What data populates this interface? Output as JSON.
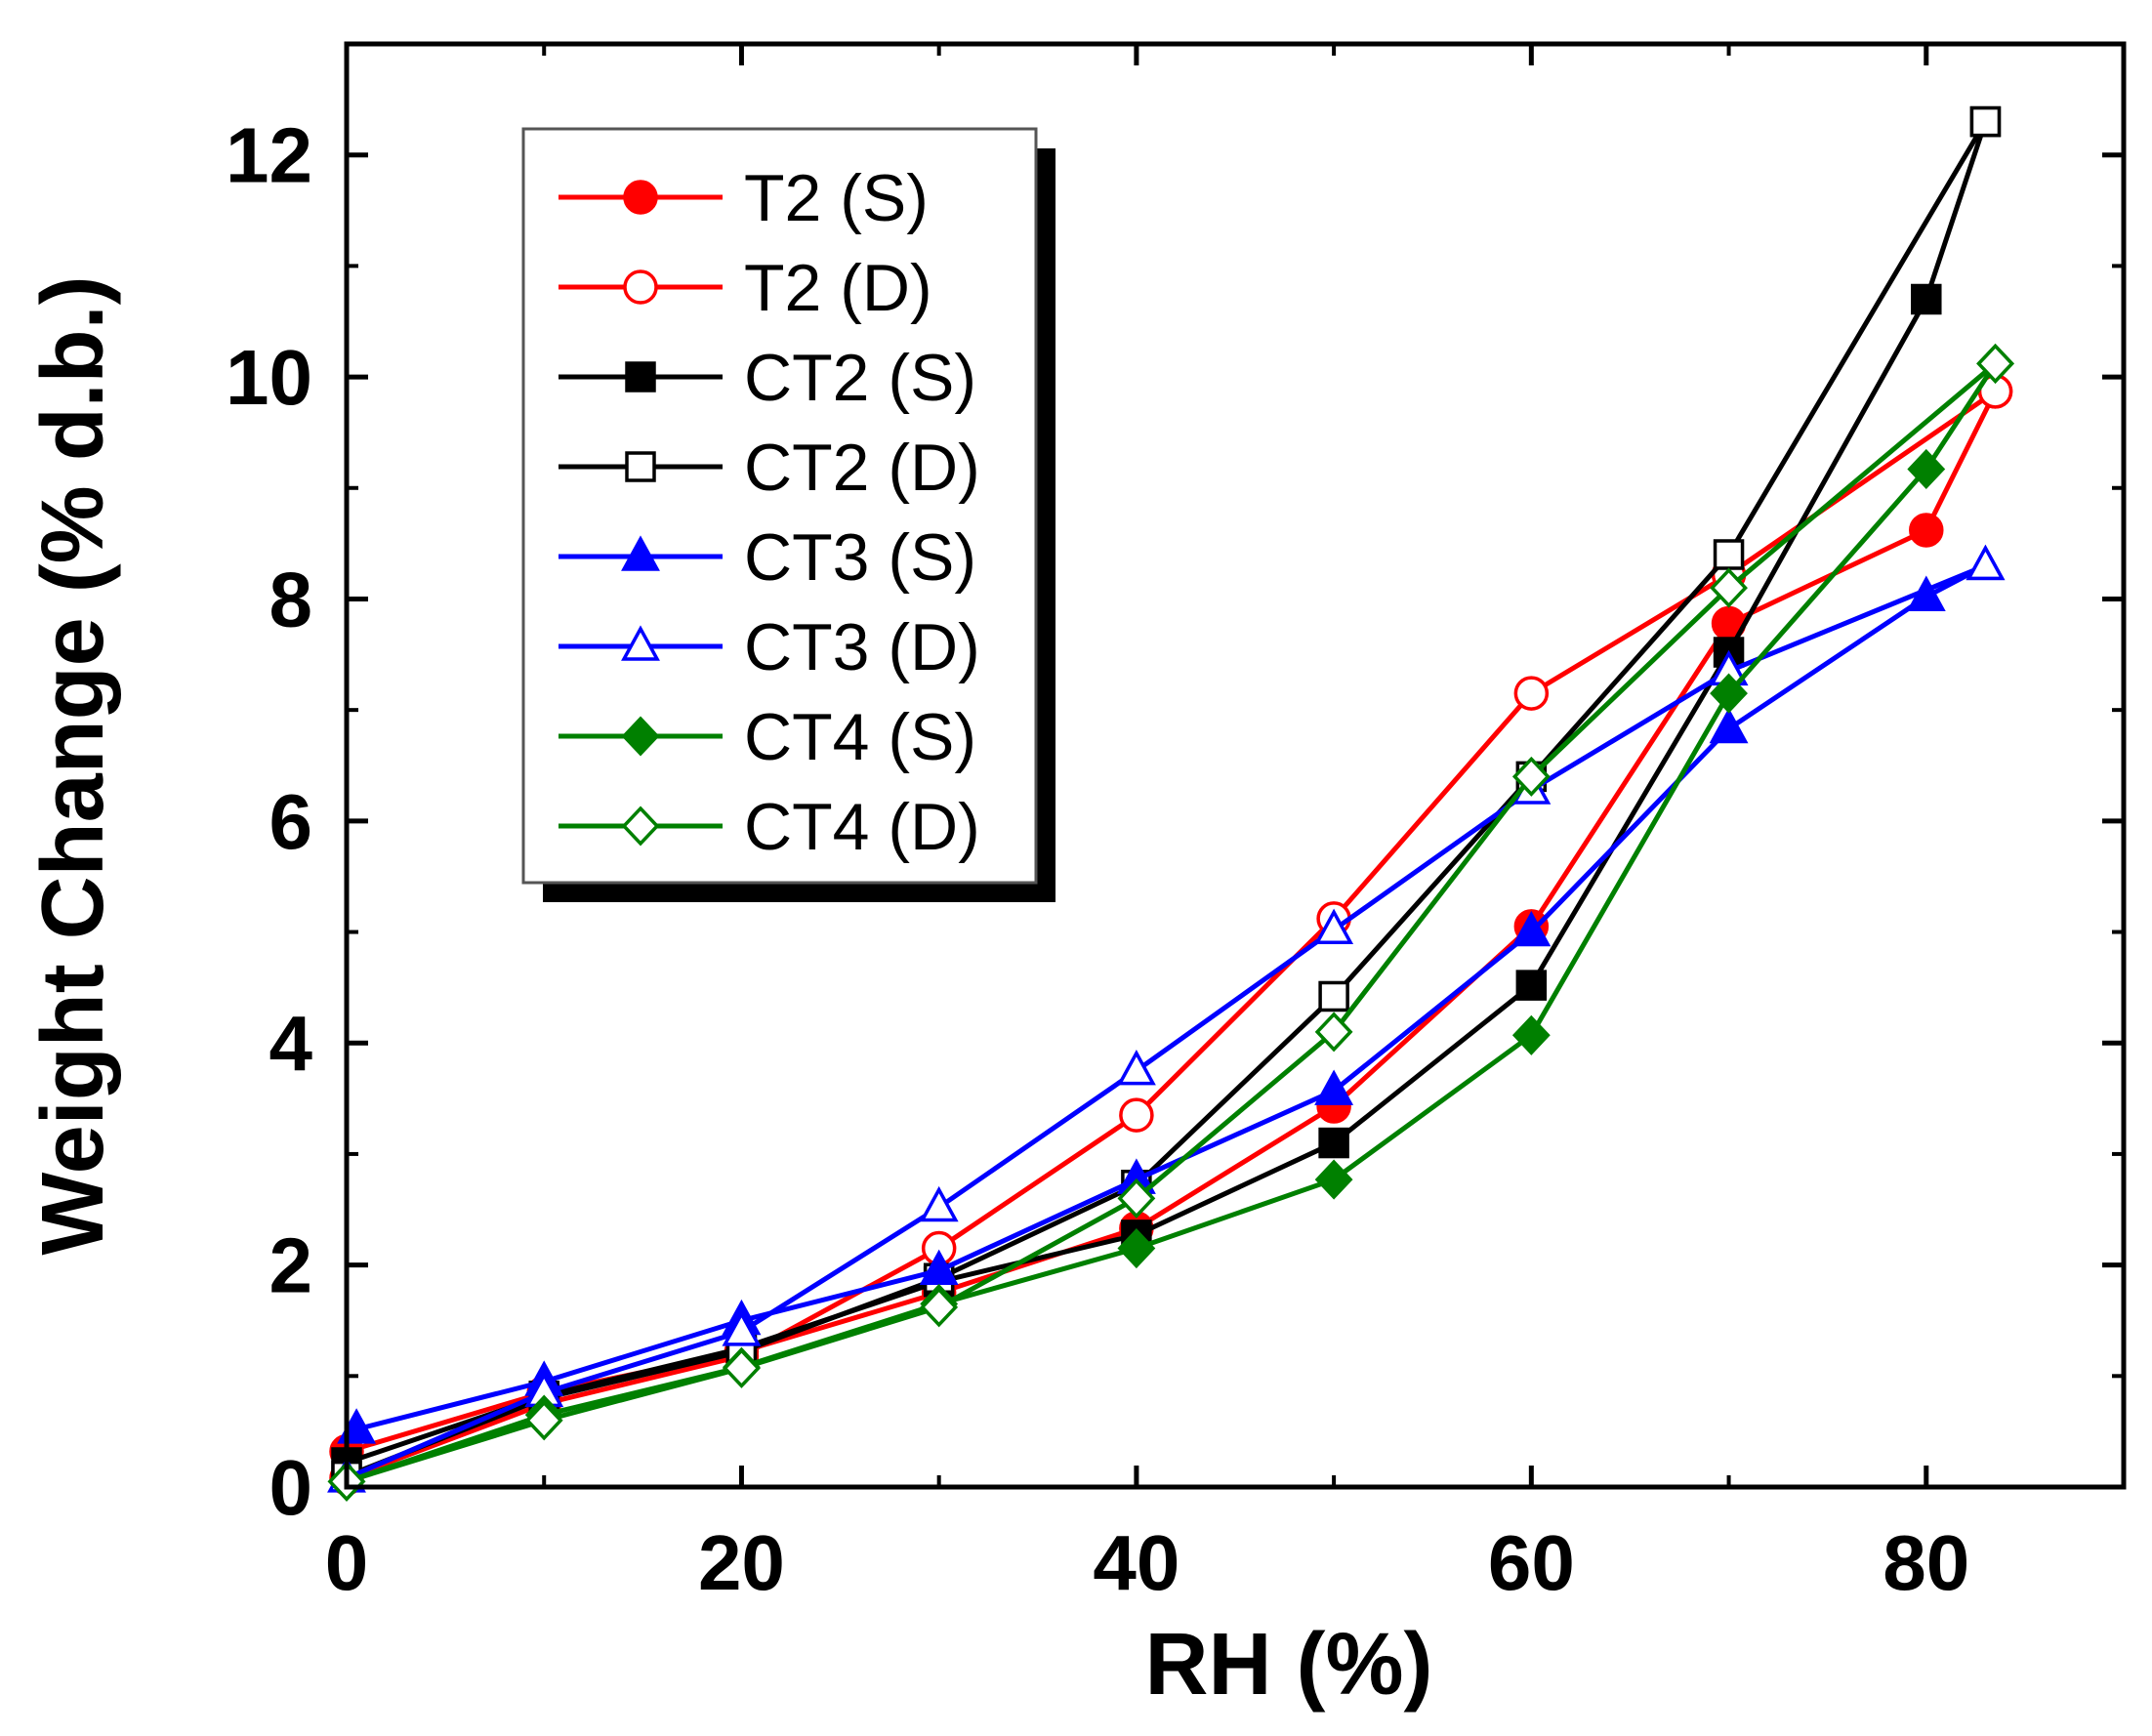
{
  "chart_data": {
    "type": "line",
    "title": "",
    "xlabel": "RH (%)",
    "ylabel": "Weight Change (% d.b.)",
    "xlim": [
      0,
      90
    ],
    "ylim": [
      0,
      13
    ],
    "xticks": [
      0,
      20,
      40,
      60,
      80
    ],
    "yticks": [
      0,
      2,
      4,
      6,
      8,
      10,
      12
    ],
    "xtick_labels": [
      "0",
      "20",
      "40",
      "60",
      "80"
    ],
    "ytick_labels": [
      "0",
      "2",
      "4",
      "6",
      "8",
      "10",
      "12"
    ],
    "grid": false,
    "legend_position": "top-left",
    "series": [
      {
        "name": "T2 (S)",
        "color": "#ff0000",
        "marker": "circle",
        "filled": true,
        "x": [
          0,
          10,
          20,
          30,
          40,
          50,
          60,
          70,
          80,
          83.5
        ],
        "y": [
          0.32,
          0.85,
          1.22,
          1.75,
          2.33,
          3.43,
          5.05,
          7.78,
          8.62,
          9.87
        ]
      },
      {
        "name": "T2 (D)",
        "color": "#ff0000",
        "marker": "circle",
        "filled": false,
        "x": [
          0,
          10,
          20,
          30,
          40,
          50,
          60,
          70,
          83.5
        ],
        "y": [
          0.08,
          0.75,
          1.18,
          2.15,
          3.35,
          5.12,
          7.15,
          8.22,
          9.87
        ]
      },
      {
        "name": "CT2 (S)",
        "color": "#000000",
        "marker": "square",
        "filled": true,
        "x": [
          0,
          10,
          20,
          30,
          40,
          50,
          60,
          70,
          80,
          83
        ],
        "y": [
          0.22,
          0.82,
          1.25,
          1.85,
          2.27,
          3.1,
          4.52,
          7.52,
          10.7,
          12.3
        ]
      },
      {
        "name": "CT2 (D)",
        "color": "#000000",
        "marker": "square",
        "filled": false,
        "x": [
          0,
          10,
          20,
          30,
          40,
          50,
          60,
          70,
          83
        ],
        "y": [
          0.1,
          0.8,
          1.22,
          1.88,
          2.72,
          4.42,
          6.4,
          8.4,
          12.3
        ]
      },
      {
        "name": "CT3 (S)",
        "color": "#0000ff",
        "marker": "triangle",
        "filled": true,
        "x": [
          0.5,
          10,
          20,
          30,
          40,
          50,
          60,
          70,
          80,
          83
        ],
        "y": [
          0.52,
          0.95,
          1.5,
          1.95,
          2.77,
          3.57,
          5.0,
          6.83,
          8.02,
          8.3
        ]
      },
      {
        "name": "CT3 (D)",
        "color": "#0000ff",
        "marker": "triangle",
        "filled": false,
        "x": [
          0,
          10,
          20,
          30,
          40,
          50,
          60,
          70,
          83
        ],
        "y": [
          0.08,
          0.85,
          1.4,
          2.52,
          3.75,
          5.02,
          6.28,
          7.35,
          8.3
        ]
      },
      {
        "name": "CT4 (S)",
        "color": "#008000",
        "marker": "diamond",
        "filled": true,
        "x": [
          0,
          10,
          20,
          30,
          40,
          50,
          60,
          70,
          80,
          83.5
        ],
        "y": [
          0.05,
          0.65,
          1.08,
          1.65,
          2.15,
          2.77,
          4.07,
          7.15,
          9.17,
          10.12
        ]
      },
      {
        "name": "CT4 (D)",
        "color": "#008000",
        "marker": "diamond",
        "filled": false,
        "x": [
          0,
          10,
          20,
          30,
          40,
          50,
          60,
          70,
          83.5
        ],
        "y": [
          0.05,
          0.6,
          1.07,
          1.62,
          2.6,
          4.1,
          6.4,
          8.1,
          10.12
        ]
      }
    ]
  }
}
